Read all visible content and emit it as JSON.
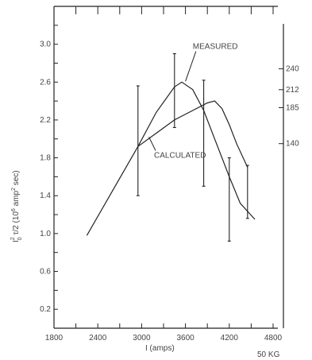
{
  "chart_data": {
    "type": "line",
    "title": "",
    "xlabel": "I (amps)",
    "ylabel": "I_0^2 τ/2 (10^6 amp^2 sec)",
    "xlim": [
      1800,
      4800
    ],
    "ylim": [
      0,
      3.4
    ],
    "x_ticks": [
      1800,
      2400,
      3000,
      3600,
      4200,
      4800
    ],
    "x_tick_labels": [
      "1800",
      "2400",
      "3000",
      "3600",
      "4200",
      "4800"
    ],
    "y_ticks": [
      0.2,
      0.6,
      1.0,
      1.4,
      1.8,
      2.2,
      2.6,
      3.0
    ],
    "y_tick_labels": [
      "0.2",
      "0.6",
      "1.0",
      "1.4",
      "1.8",
      "2.2",
      "2.6",
      "3.0"
    ],
    "grid": false,
    "series": [
      {
        "name": "MEASURED",
        "x": [
          2250,
          2600,
          2950,
          3200,
          3450,
          3550,
          3700,
          3850,
          4000,
          4200,
          4350,
          4550
        ],
        "y": [
          0.98,
          1.45,
          1.92,
          2.28,
          2.55,
          2.6,
          2.52,
          2.3,
          2.0,
          1.6,
          1.32,
          1.15
        ]
      },
      {
        "name": "CALCULATED",
        "x": [
          2950,
          3200,
          3450,
          3700,
          3900,
          4000,
          4100,
          4200,
          4300,
          4450
        ],
        "y": [
          1.92,
          2.06,
          2.2,
          2.3,
          2.38,
          2.4,
          2.32,
          2.15,
          1.95,
          1.7
        ]
      }
    ],
    "error_bars": [
      {
        "x": 2950,
        "y_low": 1.4,
        "y_high": 2.56
      },
      {
        "x": 3450,
        "y_low": 2.12,
        "y_high": 2.9
      },
      {
        "x": 3850,
        "y_low": 1.5,
        "y_high": 2.62
      },
      {
        "x": 4200,
        "y_low": 0.92,
        "y_high": 1.8
      },
      {
        "x": 4450,
        "y_low": 1.16,
        "y_high": 1.72
      }
    ],
    "annotations": [
      {
        "text": "MEASURED",
        "x": 3700,
        "y": 2.95
      },
      {
        "text": "CALCULATED",
        "x": 3170,
        "y": 1.8
      }
    ],
    "right_labels": [
      {
        "text": "240",
        "y": 2.74
      },
      {
        "text": "212",
        "y": 2.52
      },
      {
        "text": "185",
        "y": 2.33
      },
      {
        "text": "140",
        "y": 1.95
      }
    ],
    "corner_label": "50 KG"
  }
}
